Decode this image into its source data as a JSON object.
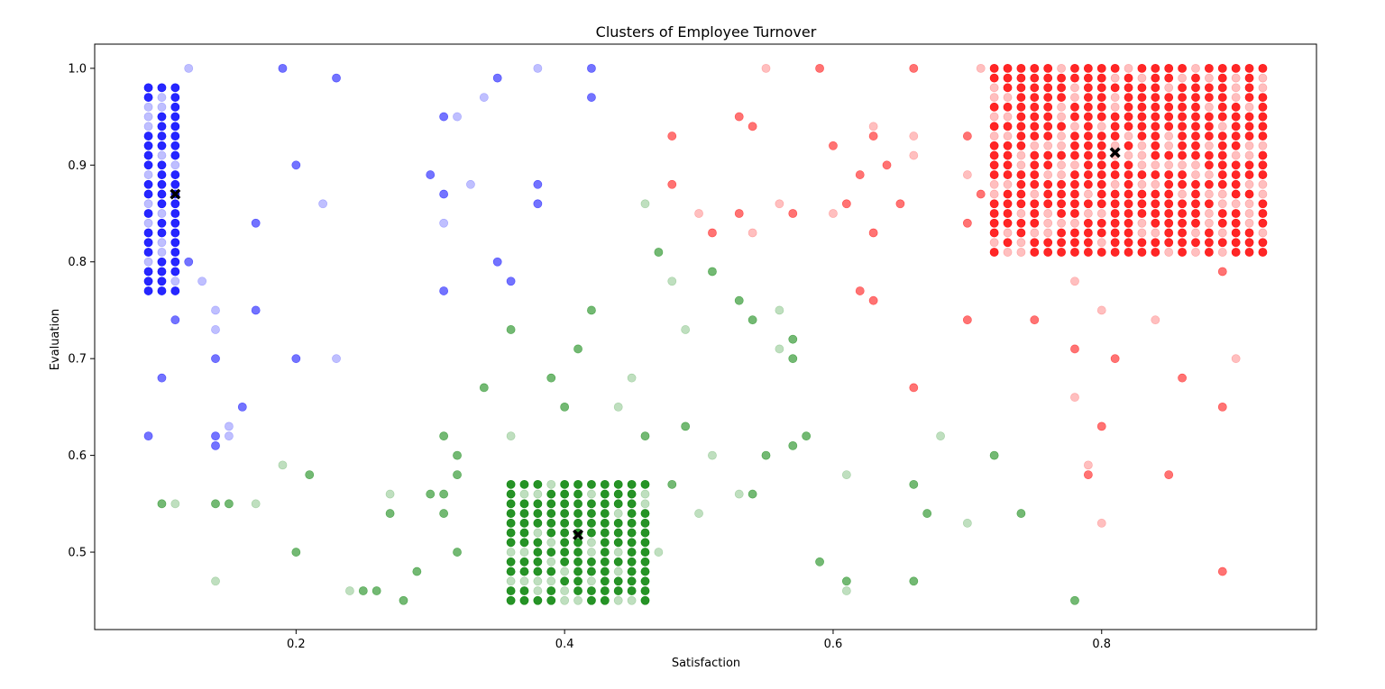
{
  "chart_data": {
    "type": "scatter",
    "title": "Clusters of Employee Turnover",
    "xlabel": "Satisfaction",
    "ylabel": "Evaluation",
    "xlim": [
      0.05,
      0.96
    ],
    "ylim": [
      0.42,
      1.025
    ],
    "x_ticks": [
      "0.2",
      "0.4",
      "0.6",
      "0.8"
    ],
    "x_tick_values": [
      0.2,
      0.4,
      0.6,
      0.8
    ],
    "y_ticks": [
      "0.5",
      "0.6",
      "0.7",
      "0.8",
      "0.9",
      "1.0"
    ],
    "y_tick_values": [
      0.5,
      0.6,
      0.7,
      0.8,
      0.9,
      1.0
    ],
    "grid": false,
    "marker_alpha_solid": 0.55,
    "marker_alpha_light": 0.25,
    "series": [
      {
        "color": "#0000ff",
        "dense_block": {
          "x": [
            0.09,
            0.1,
            0.11
          ],
          "y_min": 0.77,
          "y_max": 0.98,
          "y_step": 0.01
        },
        "points": [
          [
            0.12,
            1.0
          ],
          [
            0.19,
            1.0
          ],
          [
            0.23,
            0.99
          ],
          [
            0.38,
            1.0
          ],
          [
            0.42,
            1.0
          ],
          [
            0.35,
            0.99
          ],
          [
            0.34,
            0.97
          ],
          [
            0.42,
            0.97
          ],
          [
            0.31,
            0.95
          ],
          [
            0.32,
            0.95
          ],
          [
            0.2,
            0.9
          ],
          [
            0.3,
            0.89
          ],
          [
            0.33,
            0.88
          ],
          [
            0.38,
            0.88
          ],
          [
            0.31,
            0.87
          ],
          [
            0.22,
            0.86
          ],
          [
            0.38,
            0.86
          ],
          [
            0.17,
            0.84
          ],
          [
            0.31,
            0.84
          ],
          [
            0.12,
            0.8
          ],
          [
            0.35,
            0.8
          ],
          [
            0.13,
            0.78
          ],
          [
            0.36,
            0.78
          ],
          [
            0.31,
            0.77
          ],
          [
            0.14,
            0.75
          ],
          [
            0.17,
            0.75
          ],
          [
            0.11,
            0.74
          ],
          [
            0.14,
            0.73
          ],
          [
            0.14,
            0.7
          ],
          [
            0.2,
            0.7
          ],
          [
            0.23,
            0.7
          ],
          [
            0.1,
            0.68
          ],
          [
            0.16,
            0.65
          ],
          [
            0.15,
            0.63
          ],
          [
            0.09,
            0.62
          ],
          [
            0.14,
            0.62
          ],
          [
            0.15,
            0.62
          ],
          [
            0.14,
            0.61
          ]
        ]
      },
      {
        "color": "#008000",
        "dense_block": {
          "x": [
            0.36,
            0.37,
            0.38,
            0.39,
            0.4,
            0.41,
            0.42,
            0.43,
            0.44,
            0.45,
            0.46
          ],
          "y_min": 0.45,
          "y_max": 0.57,
          "y_step": 0.01
        },
        "points": [
          [
            0.46,
            0.86
          ],
          [
            0.47,
            0.81
          ],
          [
            0.51,
            0.79
          ],
          [
            0.48,
            0.78
          ],
          [
            0.53,
            0.76
          ],
          [
            0.42,
            0.75
          ],
          [
            0.56,
            0.75
          ],
          [
            0.54,
            0.74
          ],
          [
            0.36,
            0.73
          ],
          [
            0.49,
            0.73
          ],
          [
            0.57,
            0.72
          ],
          [
            0.41,
            0.71
          ],
          [
            0.56,
            0.71
          ],
          [
            0.57,
            0.7
          ],
          [
            0.39,
            0.68
          ],
          [
            0.45,
            0.68
          ],
          [
            0.34,
            0.67
          ],
          [
            0.4,
            0.65
          ],
          [
            0.44,
            0.65
          ],
          [
            0.49,
            0.63
          ],
          [
            0.31,
            0.62
          ],
          [
            0.36,
            0.62
          ],
          [
            0.46,
            0.62
          ],
          [
            0.58,
            0.62
          ],
          [
            0.68,
            0.62
          ],
          [
            0.57,
            0.61
          ],
          [
            0.32,
            0.6
          ],
          [
            0.51,
            0.6
          ],
          [
            0.55,
            0.6
          ],
          [
            0.72,
            0.6
          ],
          [
            0.19,
            0.59
          ],
          [
            0.21,
            0.58
          ],
          [
            0.32,
            0.58
          ],
          [
            0.61,
            0.58
          ],
          [
            0.48,
            0.57
          ],
          [
            0.66,
            0.57
          ],
          [
            0.27,
            0.56
          ],
          [
            0.3,
            0.56
          ],
          [
            0.31,
            0.56
          ],
          [
            0.53,
            0.56
          ],
          [
            0.54,
            0.56
          ],
          [
            0.1,
            0.55
          ],
          [
            0.11,
            0.55
          ],
          [
            0.14,
            0.55
          ],
          [
            0.15,
            0.55
          ],
          [
            0.17,
            0.55
          ],
          [
            0.27,
            0.54
          ],
          [
            0.31,
            0.54
          ],
          [
            0.5,
            0.54
          ],
          [
            0.67,
            0.54
          ],
          [
            0.74,
            0.54
          ],
          [
            0.7,
            0.53
          ],
          [
            0.2,
            0.5
          ],
          [
            0.32,
            0.5
          ],
          [
            0.47,
            0.5
          ],
          [
            0.59,
            0.49
          ],
          [
            0.29,
            0.48
          ],
          [
            0.14,
            0.47
          ],
          [
            0.61,
            0.47
          ],
          [
            0.66,
            0.47
          ],
          [
            0.24,
            0.46
          ],
          [
            0.25,
            0.46
          ],
          [
            0.26,
            0.46
          ],
          [
            0.61,
            0.46
          ],
          [
            0.28,
            0.45
          ],
          [
            0.78,
            0.45
          ]
        ]
      },
      {
        "color": "#ff0000",
        "dense_block": {
          "x": [
            0.72,
            0.73,
            0.74,
            0.75,
            0.76,
            0.77,
            0.78,
            0.79,
            0.8,
            0.81,
            0.82,
            0.83,
            0.84,
            0.85,
            0.86,
            0.87,
            0.88,
            0.89,
            0.9,
            0.91,
            0.92
          ],
          "y_min": 0.81,
          "y_max": 1.0,
          "y_step": 0.01
        },
        "points": [
          [
            0.55,
            1.0
          ],
          [
            0.59,
            1.0
          ],
          [
            0.66,
            1.0
          ],
          [
            0.71,
            1.0
          ],
          [
            0.53,
            0.95
          ],
          [
            0.54,
            0.94
          ],
          [
            0.63,
            0.94
          ],
          [
            0.48,
            0.93
          ],
          [
            0.63,
            0.93
          ],
          [
            0.66,
            0.93
          ],
          [
            0.7,
            0.93
          ],
          [
            0.6,
            0.92
          ],
          [
            0.66,
            0.91
          ],
          [
            0.64,
            0.9
          ],
          [
            0.62,
            0.89
          ],
          [
            0.7,
            0.89
          ],
          [
            0.48,
            0.88
          ],
          [
            0.71,
            0.87
          ],
          [
            0.56,
            0.86
          ],
          [
            0.61,
            0.86
          ],
          [
            0.65,
            0.86
          ],
          [
            0.5,
            0.85
          ],
          [
            0.53,
            0.85
          ],
          [
            0.57,
            0.85
          ],
          [
            0.6,
            0.85
          ],
          [
            0.7,
            0.84
          ],
          [
            0.51,
            0.83
          ],
          [
            0.54,
            0.83
          ],
          [
            0.63,
            0.83
          ],
          [
            0.89,
            0.79
          ],
          [
            0.78,
            0.78
          ],
          [
            0.62,
            0.77
          ],
          [
            0.63,
            0.76
          ],
          [
            0.8,
            0.75
          ],
          [
            0.7,
            0.74
          ],
          [
            0.75,
            0.74
          ],
          [
            0.84,
            0.74
          ],
          [
            0.78,
            0.71
          ],
          [
            0.81,
            0.7
          ],
          [
            0.9,
            0.7
          ],
          [
            0.86,
            0.68
          ],
          [
            0.66,
            0.67
          ],
          [
            0.78,
            0.66
          ],
          [
            0.89,
            0.65
          ],
          [
            0.8,
            0.63
          ],
          [
            0.79,
            0.59
          ],
          [
            0.79,
            0.58
          ],
          [
            0.85,
            0.58
          ],
          [
            0.8,
            0.53
          ],
          [
            0.89,
            0.48
          ]
        ]
      }
    ],
    "centroids": {
      "color": "#000000",
      "marker": "X",
      "points": [
        [
          0.11,
          0.87
        ],
        [
          0.41,
          0.518
        ],
        [
          0.81,
          0.913
        ]
      ]
    }
  }
}
